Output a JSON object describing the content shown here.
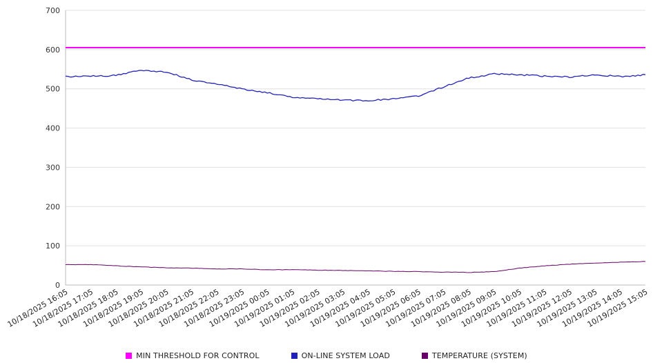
{
  "chart_data": {
    "type": "line",
    "title": "",
    "xlabel": "",
    "ylabel": "",
    "ylim": [
      0,
      700
    ],
    "yticks": [
      0,
      100,
      200,
      300,
      400,
      500,
      600,
      700
    ],
    "grid": true,
    "legend_position": "bottom",
    "x": [
      "10/18/2025 16:05",
      "10/18/2025 17:05",
      "10/18/2025 18:05",
      "10/18/2025 19:05",
      "10/18/2025 20:05",
      "10/18/2025 21:05",
      "10/18/2025 22:05",
      "10/18/2025 23:05",
      "10/19/2025 00:05",
      "10/19/2025 01:05",
      "10/19/2025 02:05",
      "10/19/2025 03:05",
      "10/19/2025 04:05",
      "10/19/2025 05:05",
      "10/19/2025 06:05",
      "10/19/2025 07:05",
      "10/19/2025 08:05",
      "10/19/2025 09:05",
      "10/19/2025 10:05",
      "10/19/2025 11:05",
      "10/19/2025 12:05",
      "10/19/2025 13:05",
      "10/19/2025 14:05",
      "10/19/2025 15:05"
    ],
    "series": [
      {
        "name": "MIN THRESHOLD FOR CONTROL",
        "color": "#ff00ff",
        "line_width": 2,
        "jitter": 0,
        "values": [
          605,
          605,
          605,
          605,
          605,
          605,
          605,
          605,
          605,
          605,
          605,
          605,
          605,
          605,
          605,
          605,
          605,
          605,
          605,
          605,
          605,
          605,
          605,
          605
        ]
      },
      {
        "name": "ON-LINE SYSTEM LOAD",
        "color": "#2222bb",
        "line_width": 1.3,
        "jitter": 1.8,
        "values": [
          531,
          532,
          534,
          548,
          543,
          523,
          512,
          500,
          490,
          479,
          476,
          471,
          470,
          474,
          482,
          505,
          528,
          538,
          536,
          532,
          530,
          536,
          531,
          536
        ]
      },
      {
        "name": "TEMPERATURE (SYSTEM)",
        "color": "#660066",
        "line_width": 1,
        "jitter": 0.5,
        "values": [
          52,
          52,
          49,
          46,
          44,
          43,
          41,
          41,
          39,
          39,
          38,
          37,
          36,
          35,
          34,
          33,
          32,
          34,
          43,
          49,
          53,
          56,
          58,
          60
        ]
      }
    ]
  },
  "colors": {
    "grid": "#e0e0e0",
    "axis": "#bbbbbb",
    "tick_text": "#333333",
    "x_label_text": "#222222"
  }
}
